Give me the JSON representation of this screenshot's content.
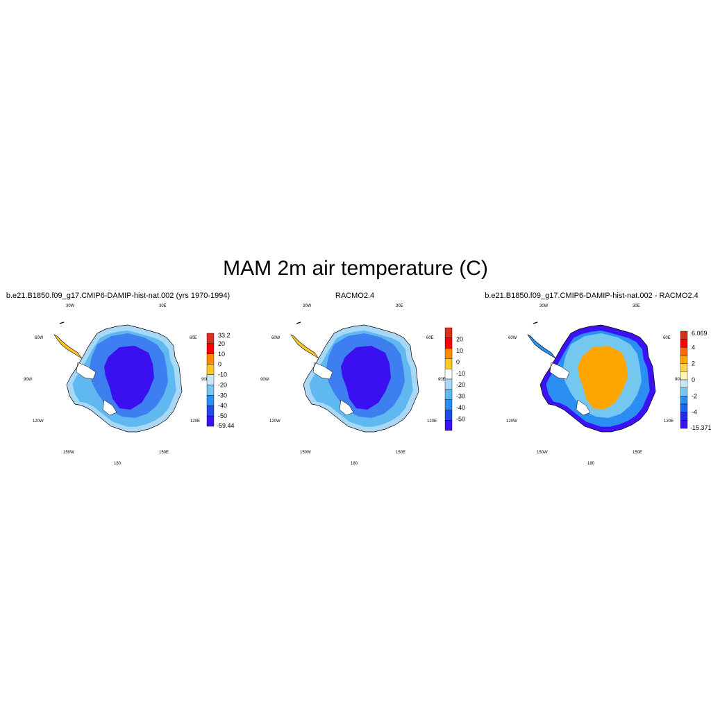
{
  "title": "MAM 2m air temperature (C)",
  "panels": [
    {
      "title": "b.e21.B1850.f09_g17.CMIP6-DAMIP-hist-nat.002 (yrs 1970-1994)",
      "lon_labels": {
        "w30": "30W",
        "e30": "30E",
        "w60": "60W",
        "e60": "60E",
        "w90": "90W",
        "e90": "90E",
        "w120": "120W",
        "e120": "120E",
        "w150": "150W",
        "e150": "150E",
        "s180": "180"
      },
      "colorbar": {
        "end_top": "33.2",
        "end_bottom": "-59.44",
        "ticks": [
          "20",
          "10",
          "0",
          "-10",
          "-20",
          "-30",
          "-40",
          "-50"
        ],
        "colors": [
          "#d7301f",
          "#ff0000",
          "#ff8c00",
          "#ffc726",
          "#c8e6f5",
          "#74c8f0",
          "#2b8ef2",
          "#1e4de6",
          "#3c12f5"
        ]
      },
      "fields": {
        "coast": "#a8d8f5",
        "outer": "#5fb8f0",
        "mid": "#3d7ef0",
        "core": "#3a10f0",
        "peninsula": "#ffc726"
      }
    },
    {
      "title": "RACMO2.4",
      "lon_labels": {
        "w30": "30W",
        "e30": "30E",
        "w60": "60W",
        "e60": "60E",
        "w90": "90W",
        "e90": "90E",
        "w120": "120W",
        "e120": "120E",
        "w150": "150W",
        "e150": "150E",
        "s180": "180"
      },
      "colorbar": {
        "end_top": "",
        "end_bottom": "",
        "ticks": [
          "20",
          "10",
          "0",
          "-10",
          "-20",
          "-30",
          "-40",
          "-50"
        ],
        "colors": [
          "#d7301f",
          "#ff0000",
          "#ff8c00",
          "#ffc726",
          "#ffffff",
          "#a8d8f5",
          "#5fb8f0",
          "#2b8ef2",
          "#1e4de6",
          "#3c12f5"
        ]
      },
      "fields": {
        "coast": "#a8d8f5",
        "outer": "#5fb8f0",
        "mid": "#3d7ef0",
        "core": "#3a10f0",
        "peninsula": "#ffc726"
      }
    },
    {
      "title": "b.e21.B1850.f09_g17.CMIP6-DAMIP-hist-nat.002 - RACMO2.4",
      "lon_labels": {
        "w30": "30W",
        "e30": "30E",
        "w60": "60W",
        "e60": "60E",
        "w90": "90W",
        "e90": "90E",
        "w120": "120W",
        "e120": "120E",
        "w150": "150W",
        "e150": "150E",
        "s180": "180"
      },
      "colorbar": {
        "end_top": "6.069",
        "end_bottom": "-15.371",
        "ticks": [
          "4",
          "2",
          "0",
          "-2",
          "-4"
        ],
        "colors": [
          "#d7301f",
          "#ff0000",
          "#ff6a00",
          "#ffa500",
          "#ffd24d",
          "#fff5b0",
          "#c8e6f5",
          "#74c8f0",
          "#2b8ef2",
          "#1e64f0",
          "#1e2ee6",
          "#3c12f5"
        ]
      },
      "fields": {
        "coast": "#3c12f5",
        "outer": "#2b8ef2",
        "mid": "#74c8f0",
        "core": "#ffa500",
        "peninsula": "#2b8ef2"
      }
    }
  ]
}
